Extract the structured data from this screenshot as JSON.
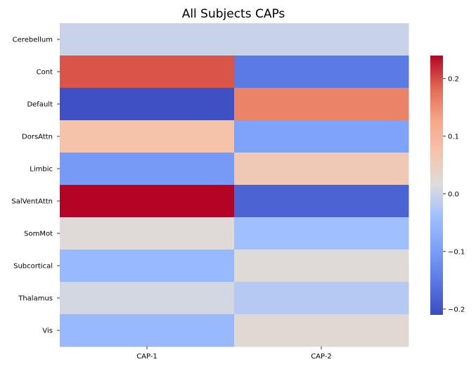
{
  "chart_data": {
    "type": "heatmap",
    "title": "All Subjects CAPs",
    "x_categories": [
      "CAP-1",
      "CAP-2"
    ],
    "y_categories": [
      "Cerebellum",
      "Cont",
      "Default",
      "DorsAttn",
      "Limbic",
      "SalVentAttn",
      "SomMot",
      "Subcortical",
      "Thalamus",
      "Vis"
    ],
    "values": [
      [
        -0.004,
        -0.004
      ],
      [
        0.195,
        -0.15
      ],
      [
        -0.205,
        0.16
      ],
      [
        0.075,
        -0.09
      ],
      [
        -0.105,
        0.06
      ],
      [
        0.24,
        -0.18
      ],
      [
        0.02,
        -0.04
      ],
      [
        -0.05,
        0.02
      ],
      [
        0.005,
        -0.02
      ],
      [
        -0.05,
        0.025
      ]
    ],
    "colormap": "coolwarm",
    "vmin": -0.21,
    "vmax": 0.24,
    "colorbar_ticks": [
      0.2,
      0.1,
      0.0,
      -0.1,
      -0.2
    ],
    "colorbar_tick_labels": [
      "0.2",
      "0.1",
      "0.0",
      "−0.1",
      "−0.2"
    ],
    "xlabel": "",
    "ylabel": ""
  }
}
